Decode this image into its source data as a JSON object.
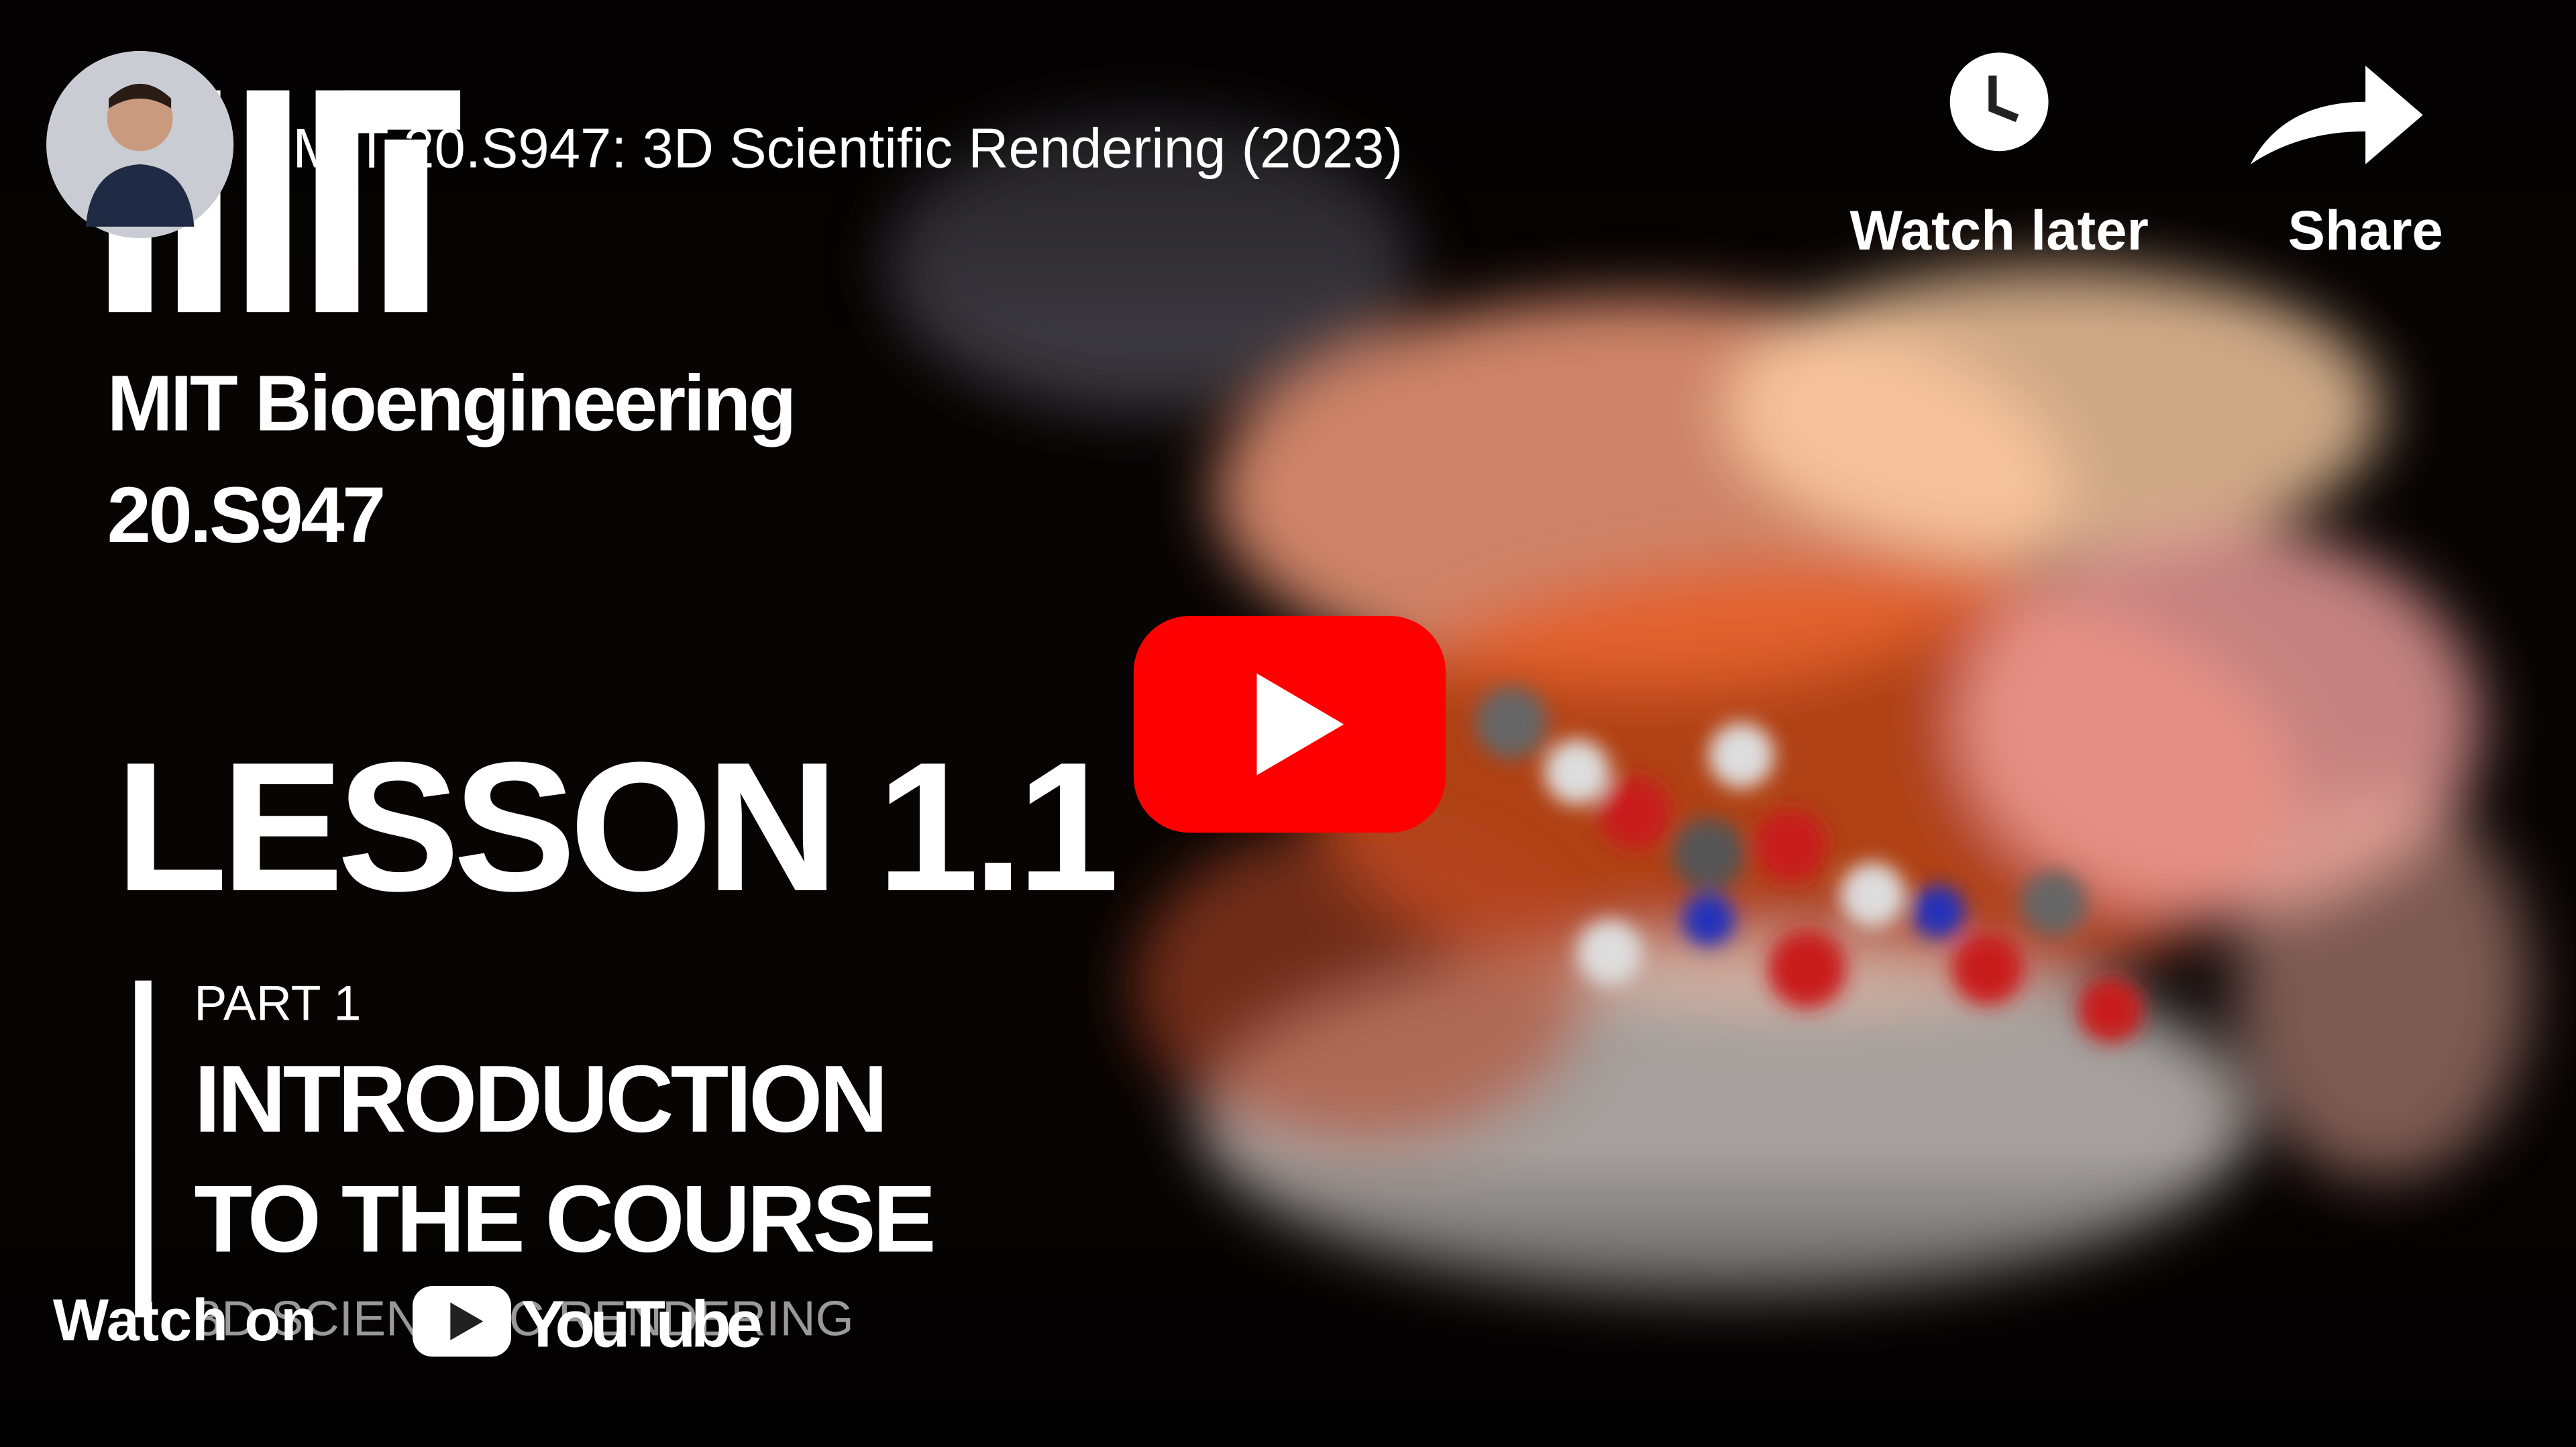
{
  "header": {
    "title": "MIT 20.S947: 3D Scientific Rendering (2023)"
  },
  "actions": {
    "watch_later": "Watch later",
    "share": "Share"
  },
  "thumbnail": {
    "course": "MIT Bioengineering",
    "code": "20.S947",
    "lesson": "LESSON 1.1",
    "part": "PART 1",
    "heading": [
      "INTRODUCTION",
      "TO THE COURSE"
    ],
    "series": "3D SCIENTIFIC RENDERING"
  },
  "footer": {
    "watch_on": "Watch on",
    "brand": "YouTube"
  }
}
